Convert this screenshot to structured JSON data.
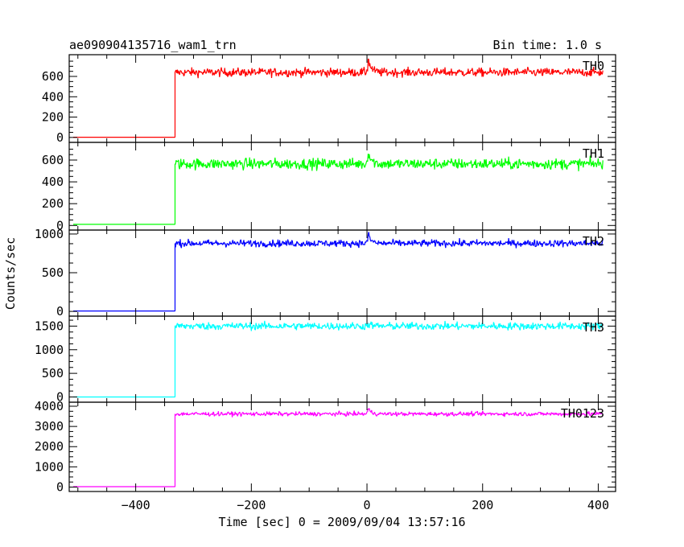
{
  "header": {
    "left_title": "ae090904135716_wam1_trn",
    "right_title": "Bin time: 1.0 s"
  },
  "chart_data": {
    "type": "line",
    "title": "ae090904135716_wam1_trn",
    "subtitle": "Bin time: 1.0 s",
    "xlabel": "Time [sec] 0 = 2009/09/04 13:57:16",
    "ylabel": "Counts/sec",
    "xlim": [
      -515,
      430
    ],
    "x_ticks": [
      -400,
      -200,
      0,
      200,
      400
    ],
    "x_tick_labels": [
      "−400",
      "−200",
      "0",
      "200",
      "400"
    ],
    "x_data_range": [
      -508,
      408
    ],
    "step_time": -332,
    "grid": false,
    "panels": [
      {
        "name": "TH0",
        "color": "#ff0000",
        "ylim": [
          -25,
          790
        ],
        "yticks": [
          0,
          200,
          400,
          600
        ],
        "pre_level": 2,
        "post_level": 640,
        "noise": 22,
        "spike_time": 2,
        "spike_peak": 775
      },
      {
        "name": "TH1",
        "color": "#00ff00",
        "ylim": [
          -20,
          740
        ],
        "yticks": [
          0,
          200,
          400,
          600
        ],
        "pre_level": 10,
        "post_level": 565,
        "noise": 26,
        "spike_time": 2,
        "spike_peak": 690
      },
      {
        "name": "TH2",
        "color": "#0000ff",
        "ylim": [
          -30,
          1020
        ],
        "yticks": [
          0,
          500,
          1000
        ],
        "pre_level": 5,
        "post_level": 880,
        "noise": 24,
        "spike_time": 2,
        "spike_peak": 1000
      },
      {
        "name": "TH3",
        "color": "#00ffff",
        "ylim": [
          -60,
          1660
        ],
        "yticks": [
          0,
          500,
          1000,
          1500
        ],
        "pre_level": 0,
        "post_level": 1500,
        "noise": 42,
        "spike_time": 2,
        "spike_peak": 1550
      },
      {
        "name": "TH0123",
        "color": "#ff00ff",
        "ylim": [
          -100,
          4080
        ],
        "yticks": [
          0,
          1000,
          2000,
          3000,
          4000
        ],
        "pre_level": 20,
        "post_level": 3620,
        "noise": 55,
        "spike_time": 2,
        "spike_peak": 3900
      }
    ]
  }
}
